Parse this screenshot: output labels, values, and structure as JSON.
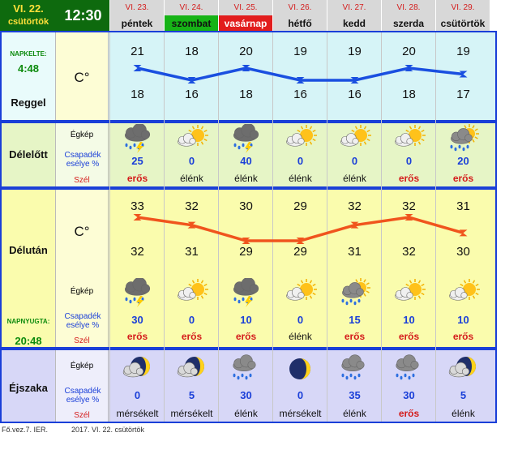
{
  "header": {
    "date": "VI. 22.",
    "weekday": "csütörtök",
    "time": "12:30"
  },
  "days": [
    {
      "date": "VI. 23.",
      "name": "péntek",
      "highlight": "none"
    },
    {
      "date": "VI. 24.",
      "name": "szombat",
      "highlight": "green"
    },
    {
      "date": "VI. 25.",
      "name": "vasárnap",
      "highlight": "red"
    },
    {
      "date": "VI. 26.",
      "name": "hétfő",
      "highlight": "none"
    },
    {
      "date": "VI. 27.",
      "name": "kedd",
      "highlight": "none"
    },
    {
      "date": "VI. 28.",
      "name": "szerda",
      "highlight": "none"
    },
    {
      "date": "VI. 29.",
      "name": "csütörtök",
      "highlight": "none"
    }
  ],
  "reggel": {
    "sunrise_label": "NAPKELTE:",
    "sunrise_time": "4:48",
    "title": "Reggel",
    "unit": "C°",
    "high": [
      21,
      18,
      20,
      19,
      19,
      20,
      19
    ],
    "low": [
      18,
      16,
      18,
      16,
      16,
      18,
      17
    ]
  },
  "delelott": {
    "title": "Délelőtt",
    "egkep": "Égkép",
    "csap": "Csapadék esélye %",
    "szel": "Szél",
    "icons": [
      "thunderstorm-icon",
      "sunny-icon",
      "thunderstorm-icon",
      "sunny-icon",
      "sunny-icon",
      "sunny-icon",
      "rain-shower-icon"
    ],
    "precip": [
      "25",
      "0",
      "40",
      "0",
      "0",
      "0",
      "20"
    ],
    "wind": [
      "erős",
      "élénk",
      "élénk",
      "élénk",
      "élénk",
      "erős",
      "erős"
    ]
  },
  "delutan": {
    "title": "Délután",
    "unit": "C°",
    "sunset_label": "NAPNYUGTA:",
    "sunset_time": "20:48",
    "egkep": "Égkép",
    "csap": "Csapadék esélye %",
    "szel": "Szél",
    "high": [
      33,
      32,
      30,
      29,
      32,
      32,
      31
    ],
    "low": [
      32,
      31,
      29,
      29,
      31,
      32,
      30
    ],
    "icons": [
      "thunderstorm-icon",
      "sunny-icon",
      "thunderstorm-icon",
      "sunny-icon",
      "rain-shower-icon",
      "sunny-icon",
      "sunny-icon"
    ],
    "precip": [
      "30",
      "0",
      "10",
      "0",
      "15",
      "10",
      "10"
    ],
    "wind": [
      "erős",
      "erős",
      "erős",
      "élénk",
      "erős",
      "erős",
      "erős"
    ]
  },
  "ejszaka": {
    "title": "Éjszaka",
    "egkep": "Égkép",
    "csap": "Csapadék esélye %",
    "szel": "Szél",
    "icons": [
      "moon-cloud-icon",
      "moon-cloud-icon",
      "night-rain-icon",
      "moon-icon",
      "night-rain-icon",
      "night-rain-icon",
      "moon-cloud-icon"
    ],
    "precip": [
      "0",
      "5",
      "30",
      "0",
      "35",
      "30",
      "5"
    ],
    "wind": [
      "mérsékelt",
      "mérsékelt",
      "élénk",
      "mérsékelt",
      "élénk",
      "erős",
      "élénk"
    ]
  },
  "footer": {
    "left": "Fő.vez.7. IER.",
    "right": "2017. VI. 22. csütörtök"
  },
  "colors": {
    "border": "#1a3fd8",
    "reggel_bg": "#d6f4f7",
    "delelott_bg": "#e6f5c6",
    "delutan_bg": "#fafcad",
    "ejszaka_bg": "#d7d7f7",
    "reggel_line": "#1a4fe0",
    "delutan_line": "#f0541d"
  }
}
